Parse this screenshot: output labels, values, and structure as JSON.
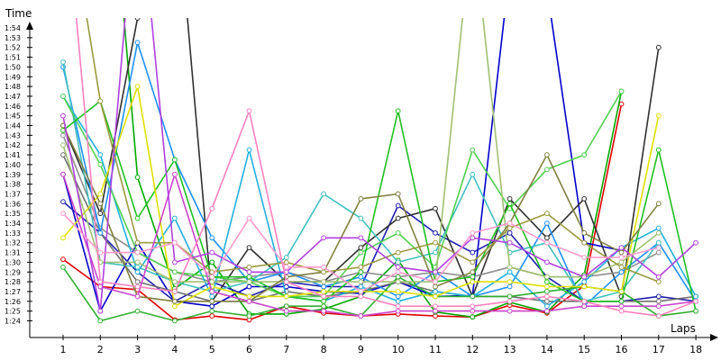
{
  "chart_data": {
    "type": "line",
    "xlabel": "Laps",
    "ylabel": "Time",
    "x": [
      1,
      2,
      3,
      4,
      5,
      6,
      7,
      8,
      9,
      10,
      11,
      12,
      13,
      14,
      15,
      16,
      17,
      18
    ],
    "y_ticks": [
      "1:24",
      "1:25",
      "1:26",
      "1:27",
      "1:28",
      "1:29",
      "1:30",
      "1:31",
      "1:32",
      "1:33",
      "1:34",
      "1:35",
      "1:36",
      "1:37",
      "1:38",
      "1:39",
      "1:40",
      "1:41",
      "1:42",
      "1:43",
      "1:44",
      "1:45",
      "1:46",
      "1:47",
      "1:48",
      "1:49",
      "1:50",
      "1:51",
      "1:52",
      "1:53",
      "1:54"
    ],
    "ylim_seconds": [
      83.3,
      115.5
    ],
    "grid": false,
    "series": [
      {
        "color": "#e00000",
        "values": [
          90.3,
          87.5,
          87.2,
          84.1,
          84.5,
          84.1,
          85.5,
          84.8,
          84.5,
          84.7,
          84.5,
          84.4,
          85.6,
          84.8,
          87.6,
          106.2,
          null,
          null
        ]
      },
      {
        "color": "#00aa00",
        "values": [
          143.5,
          143.5,
          98.7,
          87.3,
          90.0,
          84.7,
          84.7,
          85.2,
          86.5,
          90.2,
          84.9,
          84.4,
          85.9,
          84.9,
          88.7,
          107.5,
          null,
          null
        ]
      },
      {
        "color": "#0000cc",
        "values": [
          99.0,
          85.0,
          92.0,
          86.0,
          85.5,
          87.5,
          87.5,
          87.0,
          86.8,
          88.0,
          86.5,
          86.6,
          120.0,
          118.0,
          92.0,
          91.2,
          null,
          null
        ]
      },
      {
        "color": "#2020b0",
        "values": [
          96.2,
          93.0,
          89.0,
          86.0,
          88.0,
          86.5,
          88.0,
          87.5,
          87.5,
          95.8,
          93.0,
          91.0,
          93.0,
          88.5,
          86.0,
          86.0,
          86.5,
          86.0
        ]
      },
      {
        "color": "#303030",
        "values": [
          104.0,
          95.0,
          115.0,
          130.0,
          86.0,
          91.5,
          88.0,
          88.0,
          91.5,
          94.5,
          95.5,
          86.5,
          96.5,
          92.5,
          96.5,
          86.5,
          112.0,
          null
        ]
      },
      {
        "color": "#707070",
        "values": [
          101.0,
          93.0,
          88.0,
          87.0,
          86.0,
          86.0,
          87.0,
          86.5,
          87.0,
          88.0,
          87.0,
          86.5,
          86.5,
          86.0,
          86.0,
          86.0,
          86.0,
          86.5
        ]
      },
      {
        "color": "#909090",
        "values": [
          103.0,
          93.5,
          91.0,
          89.0,
          88.0,
          88.5,
          89.0,
          88.0,
          89.0,
          88.5,
          89.0,
          88.5,
          89.5,
          88.5,
          88.5,
          89.0,
          91.0,
          null
        ]
      },
      {
        "color": "#1e90ff",
        "values": [
          110.0,
          93.0,
          112.5,
          100.5,
          92.5,
          88.0,
          89.0,
          87.5,
          88.5,
          86.5,
          89.0,
          86.5,
          87.5,
          94.0,
          85.5,
          89.0,
          92.0,
          86.0
        ]
      },
      {
        "color": "#20b0e0",
        "values": [
          107.0,
          101.0,
          89.0,
          94.5,
          86.5,
          101.5,
          86.5,
          86.0,
          87.5,
          86.0,
          87.0,
          86.5,
          89.0,
          85.5,
          88.0,
          91.5,
          93.5,
          86.5
        ]
      },
      {
        "color": "#40c0c0",
        "values": [
          110.5,
          90.0,
          89.5,
          88.0,
          87.0,
          88.0,
          90.5,
          97.0,
          94.5,
          90.0,
          91.0,
          99.0,
          91.0,
          92.0,
          86.0,
          87.0,
          92.0,
          null
        ]
      },
      {
        "color": "#50d050",
        "values": [
          107.0,
          100.0,
          91.0,
          89.0,
          88.5,
          88.0,
          86.5,
          86.5,
          91.0,
          93.0,
          89.5,
          101.5,
          95.5,
          99.5,
          101.0,
          107.5,
          null,
          null
        ]
      },
      {
        "color": "#20c020",
        "values": [
          103.5,
          106.5,
          94.5,
          100.5,
          88.5,
          88.5,
          86.5,
          86.0,
          89.0,
          105.5,
          88.0,
          88.5,
          96.0,
          88.0,
          86.0,
          86.0,
          101.5,
          85.0
        ]
      },
      {
        "color": "#30b030",
        "values": [
          89.5,
          84.0,
          85.0,
          84.0,
          85.0,
          84.5,
          85.5,
          85.5,
          84.5,
          88.5,
          86.5,
          86.5,
          86.5,
          87.0,
          87.5,
          87.0,
          84.5,
          85.0
        ]
      },
      {
        "color": "#e0e000",
        "values": [
          92.5,
          97.0,
          108.0,
          85.5,
          87.5,
          86.5,
          86.5,
          87.0,
          87.0,
          87.0,
          86.5,
          88.0,
          88.0,
          87.5,
          87.5,
          87.0,
          105.0,
          null
        ]
      },
      {
        "color": "#a0c070",
        "values": [
          102.0,
          90.0,
          90.0,
          88.0,
          88.0,
          88.0,
          88.0,
          88.0,
          88.0,
          88.0,
          88.0,
          125.0,
          89.5,
          88.5,
          88.5,
          90.0,
          93.0,
          null
        ]
      },
      {
        "color": "#808040",
        "values": [
          104.0,
          96.0,
          86.5,
          86.0,
          86.0,
          86.0,
          88.5,
          89.0,
          96.5,
          97.0,
          87.5,
          89.0,
          94.0,
          101.0,
          93.0,
          91.0,
          96.0,
          null
        ]
      },
      {
        "color": "#9a9a40",
        "values": [
          130.0,
          106.5,
          92.0,
          92.0,
          89.0,
          89.5,
          90.0,
          89.0,
          89.5,
          91.0,
          92.0,
          90.0,
          93.5,
          95.0,
          92.0,
          89.5,
          88.0,
          null
        ]
      },
      {
        "color": "#cc44cc",
        "values": [
          99.0,
          87.5,
          86.5,
          99.0,
          87.0,
          86.0,
          85.0,
          85.0,
          84.5,
          85.0,
          85.0,
          85.0,
          85.0,
          85.0,
          85.5,
          85.5,
          85.5,
          86.0
        ]
      },
      {
        "color": "#b040e0",
        "values": [
          105.0,
          85.0,
          130.0,
          90.0,
          91.0,
          89.0,
          89.0,
          92.5,
          92.5,
          89.5,
          89.0,
          92.5,
          92.0,
          90.0,
          88.5,
          91.5,
          88.5,
          92.0
        ]
      },
      {
        "color": "#ff80c0",
        "values": [
          130.0,
          88.0,
          87.5,
          87.0,
          95.5,
          105.5,
          88.0,
          86.5,
          86.5,
          85.5,
          85.5,
          85.5,
          86.0,
          86.5,
          86.0,
          85.0,
          84.5,
          86.0
        ]
      },
      {
        "color": "#ff99cc",
        "values": [
          95.0,
          91.0,
          91.0,
          92.0,
          88.5,
          94.5,
          89.5,
          89.5,
          87.0,
          89.0,
          88.0,
          93.0,
          94.0,
          92.0,
          90.5,
          90.5,
          91.5,
          null
        ]
      }
    ]
  }
}
